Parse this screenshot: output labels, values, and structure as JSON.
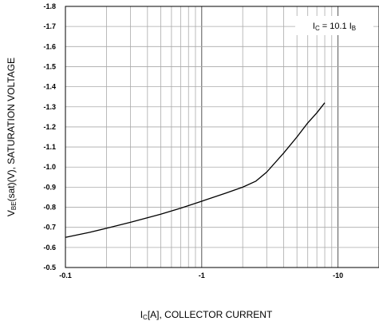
{
  "chart_data": {
    "type": "line",
    "xscale": "log",
    "xlim": [
      -0.1,
      -20
    ],
    "ylim": [
      -0.5,
      -1.8
    ],
    "yaxis_inverted": true,
    "grid": true,
    "xticks": [
      "-0.1",
      "-1",
      "-10"
    ],
    "yticks": [
      "-1.8",
      "-1.7",
      "-1.6",
      "-1.5",
      "-1.4",
      "-1.3",
      "-1.2",
      "-1.1",
      "-1.0",
      "-0.9",
      "-0.8",
      "-0.7",
      "-0.6",
      "-0.5"
    ],
    "xlabel": {
      "main": "I",
      "sub": "C",
      "rest": "[A], COLLECTOR CURRENT"
    },
    "ylabel": {
      "main": "V",
      "sub": "BE",
      "rest": "(sat)(V), SATURATION VOLTAGE"
    },
    "annotation": {
      "pre": "I",
      "sub1": "C",
      "mid": " = 10.1 I",
      "sub2": "B"
    },
    "series": [
      {
        "x": [
          -0.1,
          -0.15,
          -0.2,
          -0.3,
          -0.5,
          -0.7,
          -1,
          -1.5,
          -2,
          -2.5,
          -3,
          -4,
          -5,
          -6,
          -7,
          -8
        ],
        "y": [
          -0.65,
          -0.675,
          -0.695,
          -0.725,
          -0.765,
          -0.795,
          -0.83,
          -0.87,
          -0.9,
          -0.93,
          -0.975,
          -1.07,
          -1.15,
          -1.22,
          -1.27,
          -1.32
        ]
      }
    ]
  }
}
